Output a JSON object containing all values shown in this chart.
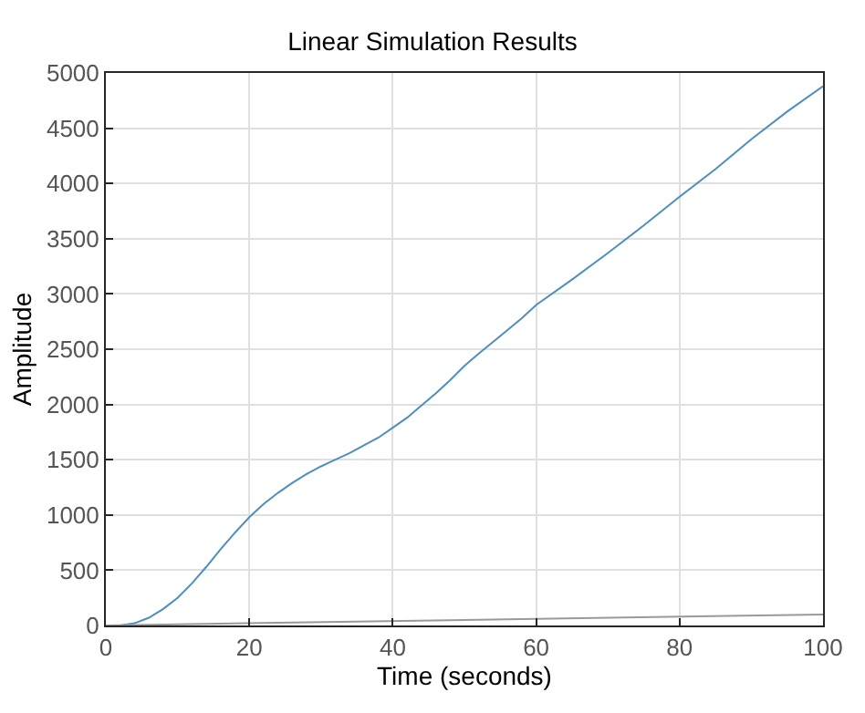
{
  "chart_data": {
    "type": "line",
    "title": "Linear Simulation Results",
    "xlabel": "Time (seconds)",
    "ylabel": "Amplitude",
    "series": [
      {
        "color": "#4d8fbf",
        "x": [
          0,
          2,
          4,
          6,
          8,
          10,
          12,
          14,
          16,
          18,
          20,
          22,
          24,
          26,
          28,
          30,
          32,
          34,
          36,
          38,
          40,
          42,
          44,
          46,
          48,
          50,
          52,
          55,
          58,
          60,
          65,
          70,
          75,
          80,
          85,
          90,
          95,
          100
        ],
        "values": [
          0,
          0,
          20,
          70,
          150,
          250,
          380,
          530,
          690,
          840,
          980,
          1100,
          1200,
          1290,
          1370,
          1440,
          1500,
          1560,
          1630,
          1700,
          1790,
          1880,
          1990,
          2100,
          2220,
          2350,
          2460,
          2620,
          2780,
          2900,
          3130,
          3370,
          3620,
          3880,
          4130,
          4400,
          4650,
          4880
        ]
      },
      {
        "color": "#999999",
        "x": [
          0,
          100
        ],
        "values": [
          0,
          100
        ]
      }
    ],
    "xlim": [
      0,
      100
    ],
    "xticks": [
      0,
      20,
      40,
      60,
      80,
      100
    ],
    "ylim": [
      0,
      5000
    ],
    "yticks": [
      0,
      500,
      1000,
      1500,
      2000,
      2500,
      3000,
      3500,
      4000,
      4500,
      5000
    ],
    "grid": true
  }
}
